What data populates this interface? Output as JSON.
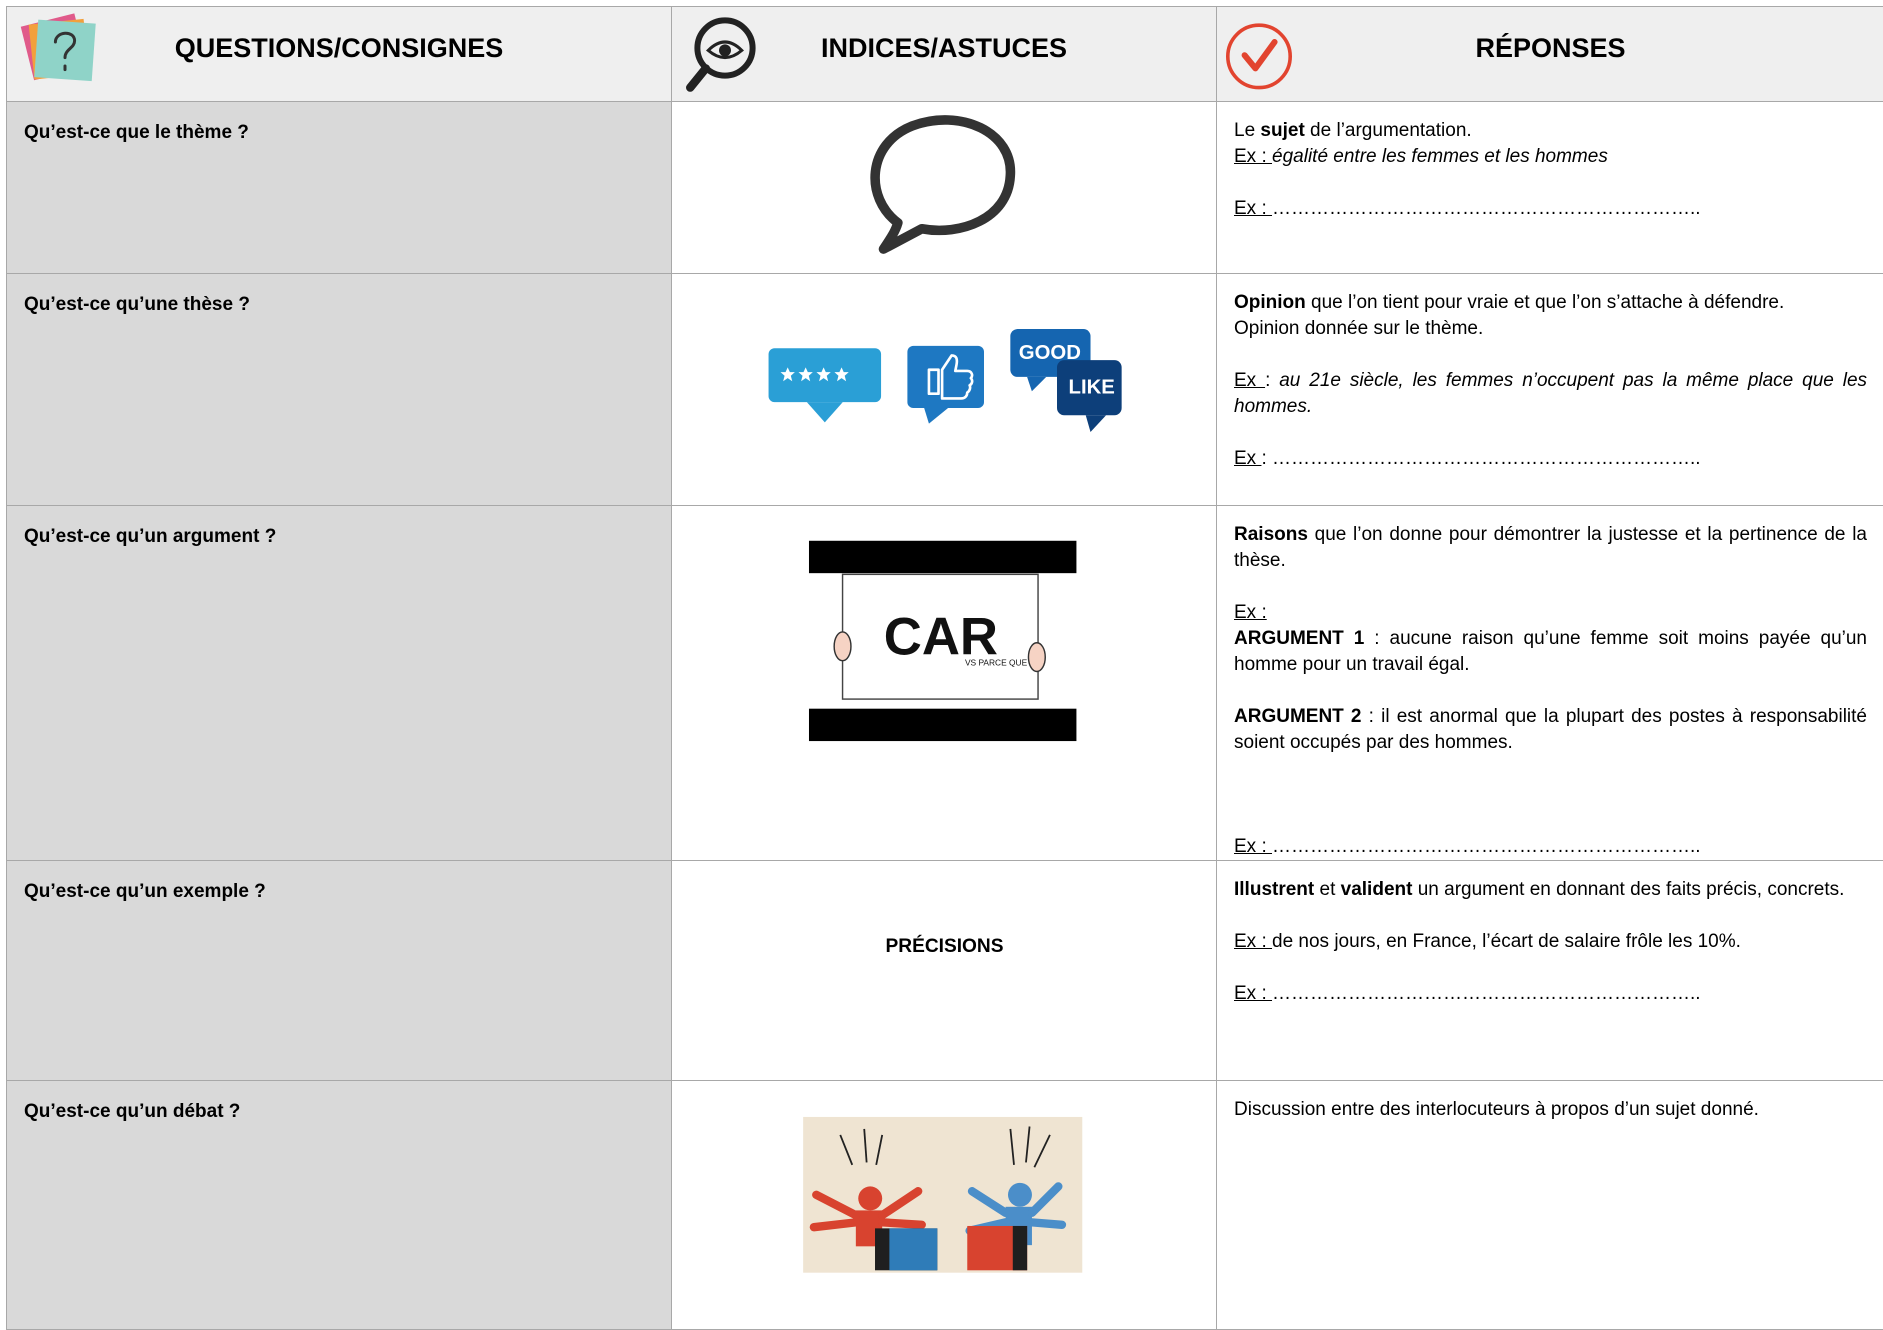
{
  "header": {
    "columns": [
      "QUESTIONS/CONSIGNES",
      "INDICES/ASTUCES",
      "RÉPONSES"
    ]
  },
  "rows": [
    {
      "question": "Qu’est-ce que le thème ?",
      "answer": [
        {
          "lines": [
            [
              {
                "text": "Le "
              },
              {
                "text": "sujet",
                "bold": true
              },
              {
                "text": " de l’argumentation."
              }
            ],
            [
              {
                "text": "Ex : ",
                "underline": true
              },
              {
                "text": "égalité entre les femmes et les hommes",
                "italic": true
              }
            ]
          ]
        },
        {
          "lines": [
            [
              {
                "text": "Ex : ",
                "underline": true
              },
              {
                "text": "………………………………………………………….."
              }
            ]
          ]
        }
      ]
    },
    {
      "question": "Qu’est-ce qu’une thèse ?",
      "hint_text": [
        "GOOD",
        "LIKE"
      ],
      "answer": [
        {
          "lines": [
            [
              {
                "text": "Opinion",
                "bold": true
              },
              {
                "text": " que l’on tient pour vraie et que l’on s’attache à défendre."
              }
            ],
            [
              {
                "text": "Opinion donnée sur le thème."
              }
            ]
          ]
        },
        {
          "lines": [
            [
              {
                "text": "Ex ",
                "underline": true
              },
              {
                "text": ": "
              },
              {
                "text": "au 21e siècle, les femmes n’occupent pas la même place que les hommes.",
                "italic": true
              }
            ]
          ]
        },
        {
          "lines": [
            [
              {
                "text": "Ex ",
                "underline": true
              },
              {
                "text": ": ………………………………………………………….."
              }
            ]
          ]
        }
      ]
    },
    {
      "question": "Qu’est-ce qu’un argument ?",
      "hint_text": [
        "CAR",
        "VS PARCE QUE"
      ],
      "answer": [
        {
          "lines": [
            [
              {
                "text": "Raisons",
                "bold": true
              },
              {
                "text": " que l’on donne pour démontrer la justesse et la pertinence de la thèse."
              }
            ]
          ]
        },
        {
          "lines": [
            [
              {
                "text": "Ex :",
                "underline": true
              }
            ],
            [
              {
                "text": "ARGUMENT 1",
                "bold": true
              },
              {
                "text": " : aucune raison qu’une femme soit moins payée qu’un homme pour un travail égal."
              }
            ]
          ]
        },
        {
          "lines": [
            [
              {
                "text": "ARGUMENT 2",
                "bold": true
              },
              {
                "text": " : il est anormal que la plupart des postes à responsabilité soient occupés par des hommes."
              }
            ]
          ]
        },
        {
          "lines": [
            [
              {
                "text": "Ex : ",
                "underline": true
              },
              {
                "text": "………………………………………………………….."
              }
            ]
          ]
        }
      ]
    },
    {
      "question": "Qu’est-ce qu’un exemple ?",
      "hint_text": [
        "PRÉCISIONS"
      ],
      "answer": [
        {
          "lines": [
            [
              {
                "text": "Illustrent",
                "bold": true
              },
              {
                "text": " et "
              },
              {
                "text": "valident",
                "bold": true
              },
              {
                "text": " un argument en donnant des faits précis, concrets."
              }
            ]
          ]
        },
        {
          "lines": [
            [
              {
                "text": "Ex : ",
                "underline": true
              },
              {
                "text": "de nos jours, en France, l’écart de salaire frôle les 10%."
              }
            ]
          ]
        },
        {
          "lines": [
            [
              {
                "text": "Ex : ",
                "underline": true
              },
              {
                "text": "………………………………………………………….."
              }
            ]
          ]
        }
      ]
    },
    {
      "question": "Qu’est-ce qu’un débat ?",
      "answer": [
        {
          "lines": [
            [
              {
                "text": "Discussion entre des interlocuteurs à propos d’un sujet donné."
              }
            ]
          ]
        }
      ]
    }
  ]
}
